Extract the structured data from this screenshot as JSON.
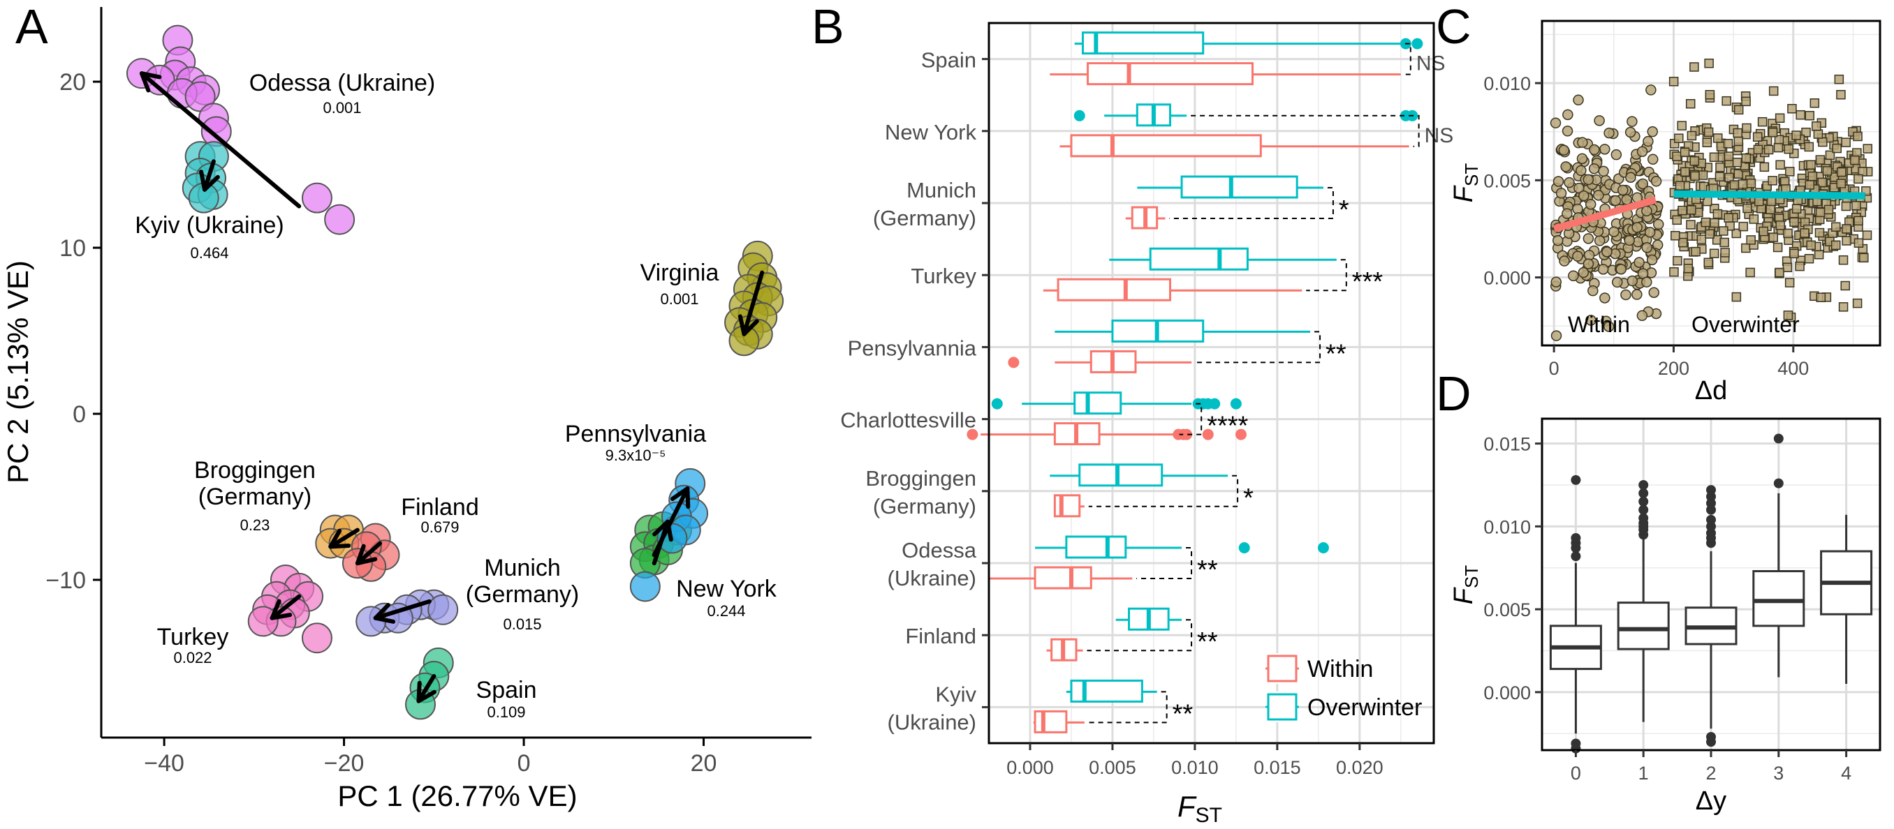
{
  "colors": {
    "within": "#F8766D",
    "overwinter": "#00BFC4",
    "sites": {
      "Odessa (Ukraine)": "#E37BF2",
      "Kyiv (Ukraine)": "#3CC3C6",
      "Virginia": "#A8A21E",
      "Pennsylvania": "#2BB03F",
      "New York": "#22A7E8",
      "Broggingen (Germany)": "#E8A23C",
      "Finland": "#F06C6C",
      "Munich (Germany)": "#9A9AE6",
      "Turkey": "#F07AC6",
      "Spain": "#2FC08A"
    }
  },
  "chart_data": [
    {
      "panel": "A",
      "type": "scatter",
      "xlabel": "PC 1 (26.77% VE)",
      "ylabel": "PC 2 (5.13% VE)",
      "xlim": [
        -47,
        32
      ],
      "ylim": [
        -19.5,
        24.5
      ],
      "xticks": [
        -40,
        -20,
        0,
        20
      ],
      "xtick_labels": [
        "−40",
        "−20",
        "0",
        "20"
      ],
      "yticks": [
        -10,
        0,
        10,
        20
      ],
      "ytick_labels": [
        "−10",
        "0",
        "10",
        "20"
      ],
      "groups": [
        {
          "name": "Odessa (Ukraine)",
          "p": "0.001",
          "points": [
            [
              -38.5,
              22.5
            ],
            [
              -38.2,
              21.2
            ],
            [
              -38.8,
              20.4
            ],
            [
              -42.5,
              20.5
            ],
            [
              -40.5,
              20.1
            ],
            [
              -37,
              20.0
            ],
            [
              -35.5,
              19.5
            ],
            [
              -38,
              19.3
            ],
            [
              -36,
              19.1
            ],
            [
              -34.5,
              17.8
            ],
            [
              -34.2,
              17.0
            ],
            [
              -23,
              13.0
            ],
            [
              -20.5,
              11.7
            ]
          ],
          "arrow": [
            [
              -25,
              12.5
            ],
            [
              -42.5,
              20.5
            ]
          ]
        },
        {
          "name": "Kyiv (Ukraine)",
          "p": "0.464",
          "points": [
            [
              -36,
              15.5
            ],
            [
              -34.5,
              15.5
            ],
            [
              -36,
              14.5
            ],
            [
              -34.8,
              14.2
            ],
            [
              -36.3,
              13.6
            ],
            [
              -34.6,
              13.2
            ],
            [
              -35.6,
              13.0
            ]
          ],
          "arrow": [
            [
              -34.5,
              15.2
            ],
            [
              -35.5,
              13.5
            ]
          ]
        },
        {
          "name": "Virginia",
          "p": "0.001",
          "points": [
            [
              26,
              9.5
            ],
            [
              25.5,
              8.8
            ],
            [
              26.5,
              8.2
            ],
            [
              27,
              7.6
            ],
            [
              25,
              7.5
            ],
            [
              26,
              7.0
            ],
            [
              27.2,
              6.8
            ],
            [
              24.5,
              6.5
            ],
            [
              25.5,
              6.0
            ],
            [
              26.5,
              5.8
            ],
            [
              24,
              5.5
            ],
            [
              25,
              5.0
            ],
            [
              26,
              4.8
            ],
            [
              24.5,
              4.4
            ]
          ],
          "arrow": [
            [
              26.5,
              8.5
            ],
            [
              24.5,
              4.8
            ]
          ]
        },
        {
          "name": "Pennsylvania",
          "p": "9.3x10⁻⁵",
          "points": [
            [
              14,
              -7.0
            ],
            [
              15.5,
              -6.8
            ],
            [
              17,
              -7.0
            ],
            [
              13.5,
              -8.0
            ],
            [
              15,
              -7.8
            ],
            [
              14.5,
              -8.8
            ],
            [
              13.5,
              -9.0
            ],
            [
              16,
              -8.2
            ]
          ],
          "arrow": [
            [
              14.5,
              -9
            ],
            [
              16,
              -6.5
            ]
          ]
        },
        {
          "name": "New York",
          "p": "0.244",
          "points": [
            [
              18.5,
              -4.2
            ],
            [
              17.8,
              -5.2
            ],
            [
              18.8,
              -6.0
            ],
            [
              17,
              -6.2
            ],
            [
              18,
              -7.0
            ],
            [
              16.5,
              -7.5
            ],
            [
              13.5,
              -10.4
            ]
          ],
          "arrow": [
            [
              14.5,
              -8.5
            ],
            [
              18.2,
              -4.5
            ]
          ]
        },
        {
          "name": "Broggingen (Germany)",
          "p": "0.23",
          "points": [
            [
              -21,
              -7.0
            ],
            [
              -19.5,
              -7.0
            ],
            [
              -21.5,
              -7.8
            ],
            [
              -20,
              -7.8
            ]
          ],
          "arrow": [
            [
              -18.5,
              -7.0
            ],
            [
              -21.5,
              -8.0
            ]
          ]
        },
        {
          "name": "Finland",
          "p": "0.679",
          "points": [
            [
              -16.5,
              -7.5
            ],
            [
              -15.5,
              -8.5
            ],
            [
              -17.5,
              -8.0
            ],
            [
              -17,
              -9.2
            ],
            [
              -18.5,
              -9.0
            ]
          ],
          "arrow": [
            [
              -16,
              -7.8
            ],
            [
              -18.5,
              -9.0
            ]
          ]
        },
        {
          "name": "Munich (Germany)",
          "p": "0.015",
          "points": [
            [
              -10,
              -11.5
            ],
            [
              -11.5,
              -11.5
            ],
            [
              -13,
              -11.8
            ],
            [
              -9,
              -11.8
            ],
            [
              -15.5,
              -12.3
            ],
            [
              -14,
              -12.3
            ],
            [
              -17,
              -12.5
            ]
          ],
          "arrow": [
            [
              -10.5,
              -11.3
            ],
            [
              -16.5,
              -12.3
            ]
          ]
        },
        {
          "name": "Turkey",
          "p": "0.022",
          "points": [
            [
              -26.5,
              -10.0
            ],
            [
              -25,
              -10.5
            ],
            [
              -24,
              -11.0
            ],
            [
              -27.5,
              -11.0
            ],
            [
              -26,
              -11.5
            ],
            [
              -28.5,
              -11.8
            ],
            [
              -25.5,
              -12.0
            ],
            [
              -27,
              -12.5
            ],
            [
              -29,
              -12.5
            ],
            [
              -23,
              -13.5
            ]
          ],
          "arrow": [
            [
              -25,
              -11
            ],
            [
              -28,
              -12.3
            ]
          ]
        },
        {
          "name": "Spain",
          "p": "0.109",
          "points": [
            [
              -9.5,
              -15.0
            ],
            [
              -10,
              -15.8
            ],
            [
              -11,
              -16.5
            ],
            [
              -11.5,
              -17.5
            ]
          ],
          "arrow": [
            [
              -10,
              -15.8
            ],
            [
              -11.7,
              -17.3
            ]
          ]
        }
      ]
    },
    {
      "panel": "B",
      "type": "boxplot",
      "xlabel": "F_ST",
      "xlim": [
        -0.0025,
        0.0245
      ],
      "xticks": [
        0.0,
        0.005,
        0.01,
        0.015,
        0.02
      ],
      "xtick_labels": [
        "0.000",
        "0.005",
        "0.010",
        "0.015",
        "0.020"
      ],
      "legend": [
        "Within",
        "Overwinter"
      ],
      "categories": [
        {
          "label": [
            "Spain"
          ],
          "sig": "NS",
          "overwinter": {
            "lw": 0.0027,
            "q1": 0.0032,
            "med": 0.004,
            "q3": 0.0105,
            "uw": 0.0225,
            "out": [
              0.0228,
              0.0235
            ]
          },
          "within": {
            "lw": 0.0012,
            "q1": 0.0035,
            "med": 0.006,
            "q3": 0.0135,
            "uw": 0.0225,
            "out": []
          }
        },
        {
          "label": [
            "New York"
          ],
          "sig": "NS",
          "overwinter": {
            "lw": 0.0045,
            "q1": 0.0065,
            "med": 0.0075,
            "q3": 0.0085,
            "uw": 0.0095,
            "out": [
              0.003,
              0.0228,
              0.0232
            ]
          },
          "within": {
            "lw": 0.0018,
            "q1": 0.0025,
            "med": 0.005,
            "q3": 0.014,
            "uw": 0.023,
            "out": []
          }
        },
        {
          "label": [
            "Munich",
            "(Germany)"
          ],
          "sig": "*",
          "overwinter": {
            "lw": 0.0065,
            "q1": 0.0092,
            "med": 0.0122,
            "q3": 0.0162,
            "uw": 0.0178,
            "out": []
          },
          "within": {
            "lw": 0.0058,
            "q1": 0.0062,
            "med": 0.007,
            "q3": 0.0077,
            "uw": 0.0082,
            "out": []
          }
        },
        {
          "label": [
            "Turkey"
          ],
          "sig": "***",
          "overwinter": {
            "lw": 0.0048,
            "q1": 0.0073,
            "med": 0.0115,
            "q3": 0.0132,
            "uw": 0.0186,
            "out": []
          },
          "within": {
            "lw": 0.0008,
            "q1": 0.0017,
            "med": 0.0058,
            "q3": 0.0085,
            "uw": 0.0165,
            "out": []
          }
        },
        {
          "label": [
            "Pensylvannia"
          ],
          "sig": "**",
          "overwinter": {
            "lw": 0.0015,
            "q1": 0.005,
            "med": 0.0077,
            "q3": 0.0105,
            "uw": 0.017,
            "out": []
          },
          "within": {
            "lw": 0.0015,
            "q1": 0.0037,
            "med": 0.005,
            "q3": 0.0064,
            "uw": 0.0098,
            "out": [
              -0.001
            ]
          }
        },
        {
          "label": [
            "Charlottesville"
          ],
          "sig": "****",
          "overwinter": {
            "lw": -0.0005,
            "q1": 0.0027,
            "med": 0.0035,
            "q3": 0.0055,
            "uw": 0.0098,
            "out": [
              -0.002,
              0.0102,
              0.0105,
              0.0108,
              0.0112,
              0.0125
            ]
          },
          "within": {
            "lw": -0.003,
            "q1": 0.0015,
            "med": 0.0028,
            "q3": 0.0042,
            "uw": 0.0088,
            "out": [
              -0.0035,
              0.009,
              0.0093,
              0.0095,
              0.0108,
              0.0128
            ]
          }
        },
        {
          "label": [
            "Broggingen",
            "(Germany)"
          ],
          "sig": "*",
          "overwinter": {
            "lw": 0.0012,
            "q1": 0.003,
            "med": 0.0053,
            "q3": 0.008,
            "uw": 0.012,
            "out": []
          },
          "within": {
            "lw": 0.0015,
            "q1": 0.0015,
            "med": 0.0019,
            "q3": 0.003,
            "uw": 0.0033,
            "out": []
          }
        },
        {
          "label": [
            "Odessa",
            "(Ukraine)"
          ],
          "sig": "**",
          "overwinter": {
            "lw": 0.0003,
            "q1": 0.0022,
            "med": 0.0047,
            "q3": 0.0058,
            "uw": 0.0092,
            "out": [
              0.013,
              0.0178
            ]
          },
          "within": {
            "lw": -0.0025,
            "q1": 0.0003,
            "med": 0.0025,
            "q3": 0.0037,
            "uw": 0.0062,
            "out": []
          }
        },
        {
          "label": [
            "Finland"
          ],
          "sig": "**",
          "overwinter": {
            "lw": 0.0052,
            "q1": 0.006,
            "med": 0.0072,
            "q3": 0.0084,
            "uw": 0.0092,
            "out": []
          },
          "within": {
            "lw": 0.001,
            "q1": 0.0013,
            "med": 0.002,
            "q3": 0.0028,
            "uw": 0.0032,
            "out": []
          }
        },
        {
          "label": [
            "Kyiv",
            "(Ukraine)"
          ],
          "sig": "**",
          "overwinter": {
            "lw": 0.0022,
            "q1": 0.0025,
            "med": 0.0033,
            "q3": 0.0068,
            "uw": 0.0077,
            "out": []
          },
          "within": {
            "lw": 0.0002,
            "q1": 0.0003,
            "med": 0.0008,
            "q3": 0.0022,
            "uw": 0.0033,
            "out": []
          }
        }
      ]
    },
    {
      "panel": "C",
      "type": "scatter",
      "xlabel": "Δd",
      "ylabel": "F_ST",
      "xlim": [
        -20,
        545
      ],
      "ylim": [
        -0.0035,
        0.0132
      ],
      "xticks": [
        0,
        200,
        400
      ],
      "xtick_labels": [
        "0",
        "200",
        "400"
      ],
      "yticks": [
        0.0,
        0.005,
        0.01
      ],
      "ytick_labels": [
        "0.000",
        "0.005",
        "0.010"
      ],
      "groups": [
        {
          "name": "Within",
          "marker": "circle",
          "n": 260,
          "x_range": [
            2,
            175
          ],
          "y_mean": 0.0032,
          "y_sd": 0.0028
        },
        {
          "name": "Overwinter",
          "marker": "square",
          "n": 480,
          "x_range": [
            200,
            525
          ],
          "y_mean": 0.0042,
          "y_sd": 0.0027
        }
      ],
      "fits": [
        {
          "name": "Within",
          "x": [
            0,
            170
          ],
          "y": [
            0.0025,
            0.004
          ]
        },
        {
          "name": "Overwinter",
          "x": [
            200,
            520
          ],
          "y": [
            0.0043,
            0.0042
          ]
        }
      ],
      "annotations": [
        "Within",
        "Overwinter"
      ]
    },
    {
      "panel": "D",
      "type": "boxplot",
      "xlabel": "Δy",
      "ylabel": "F_ST",
      "ylim": [
        -0.0035,
        0.0165
      ],
      "yticks": [
        0.0,
        0.005,
        0.01,
        0.015
      ],
      "ytick_labels": [
        "0.000",
        "0.005",
        "0.010",
        "0.015"
      ],
      "categories": [
        "0",
        "1",
        "2",
        "3",
        "4"
      ],
      "boxes": [
        {
          "lw": -0.0025,
          "q1": 0.0014,
          "med": 0.0027,
          "q3": 0.004,
          "uw": 0.0078,
          "out": [
            -0.0031,
            -0.0034,
            0.0082,
            0.0087,
            0.009,
            0.0093,
            0.0128
          ]
        },
        {
          "lw": -0.0018,
          "q1": 0.0026,
          "med": 0.0038,
          "q3": 0.0054,
          "uw": 0.0093,
          "out": [
            0.0095,
            0.0098,
            0.01,
            0.0102,
            0.0105,
            0.011,
            0.0115,
            0.012,
            0.0125
          ]
        },
        {
          "lw": -0.0022,
          "q1": 0.0029,
          "med": 0.0039,
          "q3": 0.0051,
          "uw": 0.0085,
          "out": [
            -0.0027,
            -0.003,
            0.009,
            0.0093,
            0.0096,
            0.01,
            0.0104,
            0.011,
            0.0114,
            0.0118,
            0.0122
          ]
        },
        {
          "lw": 0.0009,
          "q1": 0.004,
          "med": 0.0055,
          "q3": 0.0073,
          "uw": 0.012,
          "out": [
            0.0126,
            0.0153
          ]
        },
        {
          "lw": 0.0005,
          "q1": 0.0047,
          "med": 0.0066,
          "q3": 0.0085,
          "uw": 0.0107,
          "out": []
        }
      ]
    }
  ]
}
